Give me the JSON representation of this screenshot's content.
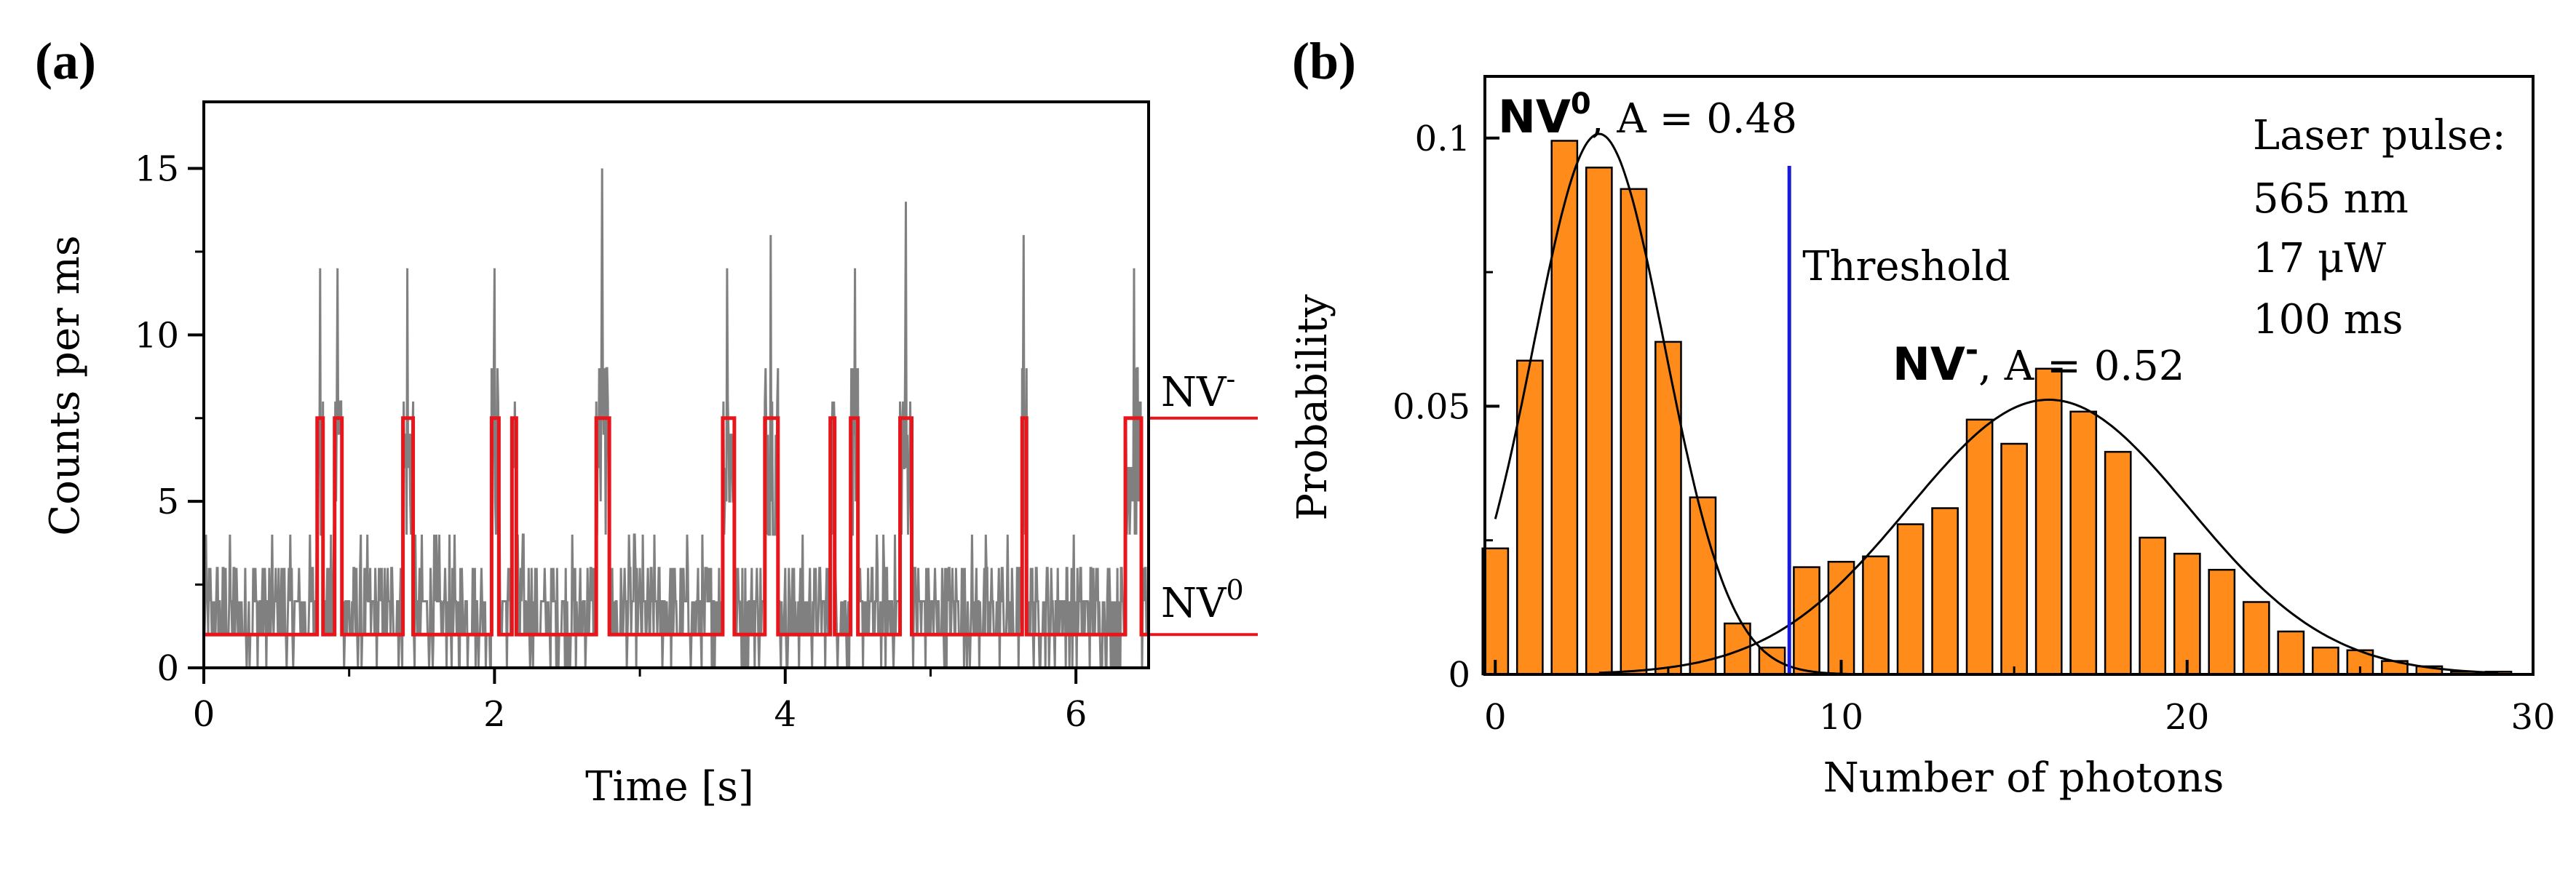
{
  "chart_data": [
    {
      "panel": "(a)",
      "type": "line",
      "xlabel": "Time [s]",
      "ylabel": "Counts per ms",
      "xlim": [
        0,
        6.5
      ],
      "ylim": [
        0,
        17
      ],
      "xticks": [
        0,
        2,
        4,
        6
      ],
      "yticks": [
        0,
        5,
        10,
        15
      ],
      "grid": false,
      "colors": {
        "raw": "#808080",
        "state": "#e8151b"
      },
      "levels": {
        "NV0": 1.0,
        "NVminus": 7.5
      },
      "level_labels": {
        "NVminus": "NV",
        "NVminus_sup": "-",
        "NV0": "NV",
        "NV0_sup": "0"
      },
      "nvminus_intervals": [
        [
          0.78,
          0.82
        ],
        [
          0.9,
          0.95
        ],
        [
          1.37,
          1.44
        ],
        [
          1.98,
          2.03
        ],
        [
          2.12,
          2.15
        ],
        [
          2.7,
          2.79
        ],
        [
          3.57,
          3.65
        ],
        [
          3.86,
          3.95
        ],
        [
          4.31,
          4.34
        ],
        [
          4.45,
          4.5
        ],
        [
          4.79,
          4.87
        ],
        [
          5.63,
          5.66
        ],
        [
          6.34,
          6.45
        ]
      ],
      "spike_peaks": [
        {
          "t": 0.8,
          "v": 12
        },
        {
          "t": 0.92,
          "v": 12
        },
        {
          "t": 1.4,
          "v": 12
        },
        {
          "t": 2.0,
          "v": 12
        },
        {
          "t": 2.13,
          "v": 7
        },
        {
          "t": 2.74,
          "v": 15
        },
        {
          "t": 3.6,
          "v": 12
        },
        {
          "t": 3.9,
          "v": 13
        },
        {
          "t": 4.32,
          "v": 7
        },
        {
          "t": 4.48,
          "v": 12
        },
        {
          "t": 4.83,
          "v": 14
        },
        {
          "t": 5.64,
          "v": 13
        },
        {
          "t": 6.4,
          "v": 12
        }
      ]
    },
    {
      "panel": "(b)",
      "type": "bar",
      "xlabel": "Number of photons",
      "ylabel": "Probability",
      "xlim": [
        -0.3,
        30
      ],
      "ylim": [
        0,
        0.1115
      ],
      "xticks": [
        0,
        10,
        20,
        30
      ],
      "yticks": [
        0,
        0.05,
        0.1
      ],
      "ytick_labels": [
        "0",
        "0.05",
        "0.1"
      ],
      "bar_color": "#ff8c1a",
      "x": [
        0,
        1,
        2,
        3,
        4,
        5,
        6,
        7,
        8,
        9,
        10,
        11,
        12,
        13,
        14,
        15,
        16,
        17,
        18,
        19,
        20,
        21,
        22,
        23,
        24,
        25,
        26,
        27,
        28,
        29
      ],
      "values": [
        0.0235,
        0.0585,
        0.0995,
        0.0945,
        0.0905,
        0.062,
        0.033,
        0.0095,
        0.005,
        0.02,
        0.021,
        0.022,
        0.028,
        0.031,
        0.0475,
        0.043,
        0.057,
        0.049,
        0.0415,
        0.0255,
        0.0225,
        0.0195,
        0.0135,
        0.008,
        0.005,
        0.0045,
        0.0025,
        0.0015,
        0.0005,
        0.0005
      ],
      "fits": [
        {
          "name": "NV0",
          "A": 0.48,
          "mean": 3.0,
          "sd": 1.9,
          "range": [
            0,
            11
          ]
        },
        {
          "name": "NVminus",
          "A": 0.52,
          "mean": 16.0,
          "sd": 4.05,
          "range": [
            3,
            29
          ]
        }
      ],
      "threshold": {
        "x": 8.5,
        "label": "Threshold",
        "color": "#1a1adb"
      },
      "annotations": {
        "nv0": {
          "name": "NV",
          "sup": "0",
          "rest": ", A = 0.48"
        },
        "nvminus": {
          "name": "NV",
          "sup": "-",
          "rest": ", A = 0.52"
        },
        "laser": [
          "Laser pulse:",
          "565 nm",
          "17 μW",
          "100 ms"
        ]
      }
    }
  ]
}
